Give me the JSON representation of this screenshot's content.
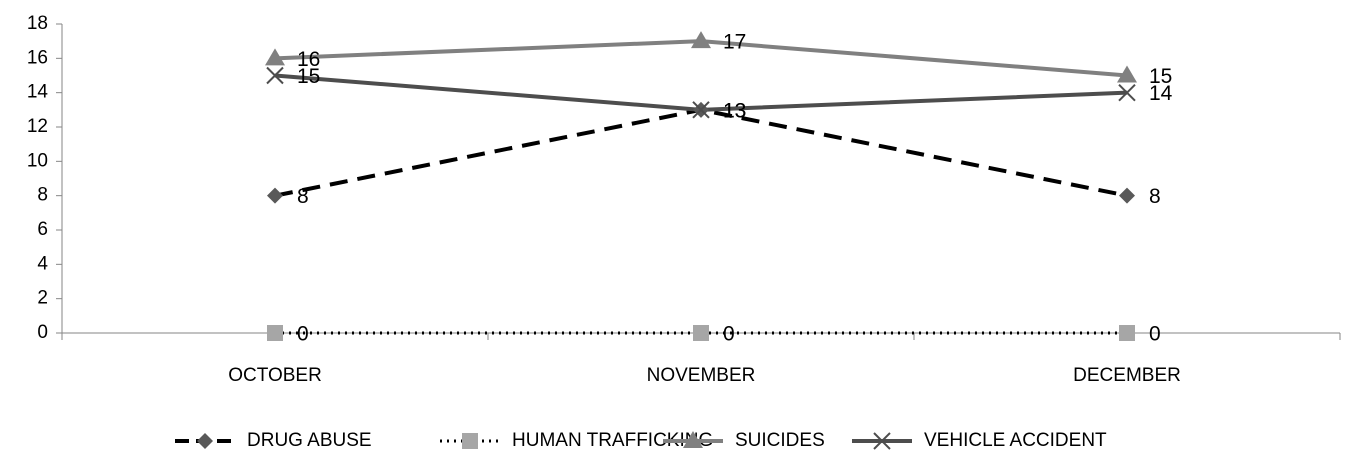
{
  "chart_data": {
    "type": "line",
    "categories": [
      "OCTOBER",
      "NOVEMBER",
      "DECEMBER"
    ],
    "series": [
      {
        "name": "DRUG ABUSE",
        "color": "#000000",
        "marker_color": "#595959",
        "dash": "dashed",
        "marker": "diamond",
        "values": [
          8,
          13,
          8
        ]
      },
      {
        "name": "HUMAN TRAFFICKING",
        "color": "#000000",
        "marker_color": "#a6a6a6",
        "dash": "dotted",
        "marker": "square",
        "values": [
          0,
          0,
          0
        ]
      },
      {
        "name": "SUICIDES",
        "color": "#808080",
        "marker_color": "#808080",
        "dash": "solid",
        "marker": "triangle",
        "values": [
          16,
          17,
          15
        ]
      },
      {
        "name": "VEHICLE ACCIDENT",
        "color": "#4d4d4d",
        "marker_color": "#4d4d4d",
        "dash": "solid",
        "marker": "x",
        "values": [
          15,
          13,
          14
        ]
      }
    ],
    "ylim": [
      0,
      18
    ],
    "yticks": [
      0,
      2,
      4,
      6,
      8,
      10,
      12,
      14,
      16,
      18
    ],
    "legend": "bottom",
    "data_labels": true
  }
}
